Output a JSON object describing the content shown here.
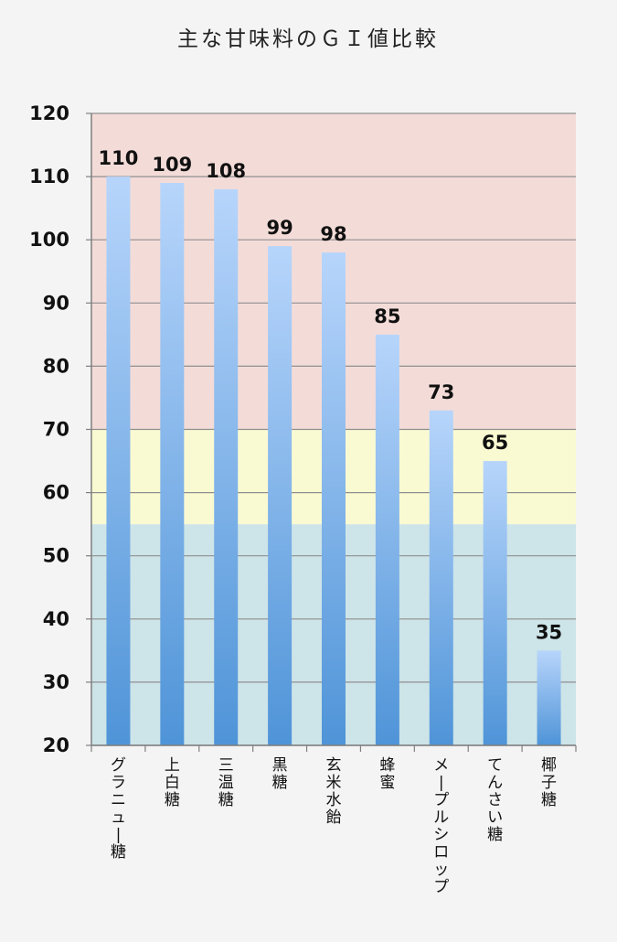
{
  "chart_data": {
    "type": "bar",
    "title": "主な甘味料のＧＩ値比較",
    "xlabel": "",
    "ylabel": "",
    "ylim": [
      20,
      120
    ],
    "ytick_step": 10,
    "yticks": [
      "20",
      "30",
      "40",
      "50",
      "60",
      "70",
      "80",
      "90",
      "100",
      "110",
      "120"
    ],
    "grid": true,
    "legend": "none",
    "categories": [
      "グラニュー糖",
      "上白糖",
      "三温糖",
      "黒糖",
      "玄米水飴",
      "蜂蜜",
      "メープルシロップ",
      "てんさい糖",
      "椰子糖"
    ],
    "values": [
      110,
      109,
      108,
      99,
      98,
      85,
      73,
      65,
      35
    ],
    "data_labels": [
      "110",
      "109",
      "108",
      "99",
      "98",
      "85",
      "73",
      "65",
      "35"
    ],
    "bands": [
      {
        "from": 20,
        "to": 55,
        "color": "#cde4e8"
      },
      {
        "from": 55,
        "to": 70,
        "color": "#fafad2"
      },
      {
        "from": 70,
        "to": 120,
        "color": "#f3dcd8"
      }
    ],
    "colors": {
      "bar_top": "#b7d5fb",
      "bar_bottom": "#4f94d8",
      "grid": "#8f8f8f",
      "axis": "#7f7f7f",
      "background": "#f4f4f4"
    }
  }
}
